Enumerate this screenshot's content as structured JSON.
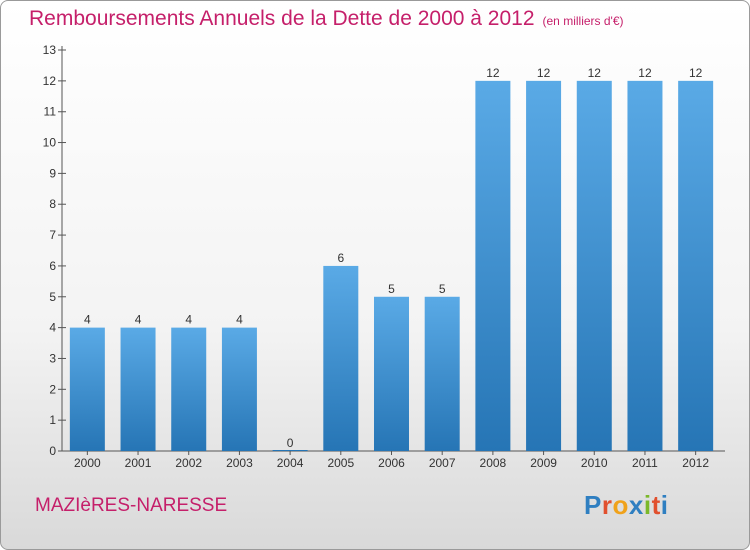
{
  "header": {
    "title": "Remboursements Annuels de la Dette de 2000 à 2012",
    "unit": "(en milliers d'€)"
  },
  "footer": {
    "commune": "MAZIèRES-NARESSE",
    "logo_letters": [
      "P",
      "r",
      "o",
      "x",
      "i",
      "t",
      "i"
    ]
  },
  "colors": {
    "bar_top": "#5aaae6",
    "bar_bottom": "#2675b5",
    "accent": "#c51f6a"
  },
  "chart_data": {
    "type": "bar",
    "title": "Remboursements Annuels de la Dette de 2000 à 2012",
    "subtitle": "(en milliers d'€)",
    "categories": [
      "2000",
      "2001",
      "2002",
      "2003",
      "2004",
      "2005",
      "2006",
      "2007",
      "2008",
      "2009",
      "2010",
      "2011",
      "2012"
    ],
    "values": [
      4,
      4,
      4,
      4,
      0,
      6,
      5,
      5,
      12,
      12,
      12,
      12,
      12
    ],
    "data_labels": [
      "4",
      "4",
      "4",
      "4",
      "0",
      "6",
      "5",
      "5",
      "12",
      "12",
      "12",
      "12",
      "12"
    ],
    "yticks": [
      "0",
      "1",
      "2",
      "3",
      "4",
      "5",
      "6",
      "7",
      "8",
      "9",
      "10",
      "11",
      "12",
      "13"
    ],
    "ylim": [
      0,
      13
    ],
    "grid": false
  }
}
